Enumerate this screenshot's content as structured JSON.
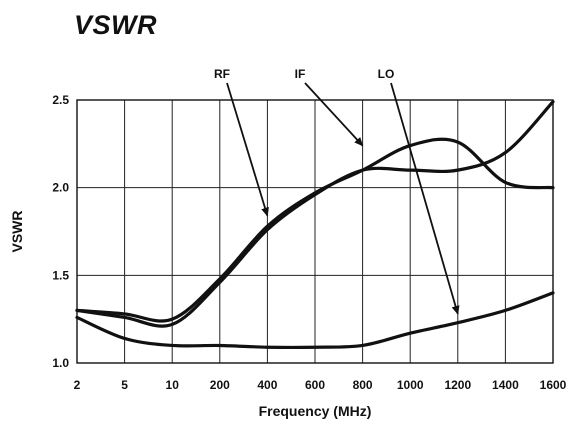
{
  "chart_data": {
    "type": "line",
    "title": "VSWR",
    "xlabel": "Frequency (MHz)",
    "ylabel": "VSWR",
    "x_tick_labels": [
      "2",
      "5",
      "10",
      "200",
      "400",
      "600",
      "800",
      "1000",
      "1200",
      "1400",
      "1600"
    ],
    "y_ticks": [
      1.0,
      1.5,
      2.0,
      2.5
    ],
    "y_tick_labels": [
      "1.0",
      "1.5",
      "2.0",
      "2.5"
    ],
    "ylim": [
      1.0,
      2.5
    ],
    "grid": true,
    "line_color": "#111111",
    "series": [
      {
        "name": "RF",
        "points": [
          [
            "2",
            1.3
          ],
          [
            "5",
            1.28
          ],
          [
            "10",
            1.25
          ],
          [
            "200",
            1.48
          ],
          [
            "400",
            1.78
          ],
          [
            "600",
            1.97
          ],
          [
            "800",
            2.1
          ],
          [
            "1000",
            2.24
          ],
          [
            "1200",
            2.26
          ],
          [
            "1400",
            2.03
          ],
          [
            "1600",
            2.0
          ]
        ]
      },
      {
        "name": "IF",
        "points": [
          [
            "2",
            1.3
          ],
          [
            "5",
            1.26
          ],
          [
            "10",
            1.22
          ],
          [
            "200",
            1.46
          ],
          [
            "400",
            1.76
          ],
          [
            "600",
            1.96
          ],
          [
            "800",
            2.1
          ],
          [
            "1000",
            2.1
          ],
          [
            "1200",
            2.1
          ],
          [
            "1400",
            2.2
          ],
          [
            "1600",
            2.49
          ]
        ]
      },
      {
        "name": "LO",
        "points": [
          [
            "2",
            1.26
          ],
          [
            "5",
            1.14
          ],
          [
            "10",
            1.1
          ],
          [
            "200",
            1.1
          ],
          [
            "400",
            1.09
          ],
          [
            "600",
            1.09
          ],
          [
            "800",
            1.1
          ],
          [
            "1000",
            1.17
          ],
          [
            "1200",
            1.23
          ],
          [
            "1400",
            1.3
          ],
          [
            "1600",
            1.4
          ]
        ]
      }
    ],
    "annotations": [
      {
        "label": "RF",
        "points_to_series": "RF",
        "target": [
          "400",
          1.84
        ]
      },
      {
        "label": "IF",
        "points_to_series": "IF",
        "target": [
          "800",
          2.24
        ]
      },
      {
        "label": "LO",
        "points_to_series": "LO",
        "target": [
          "1200",
          1.28
        ]
      }
    ]
  }
}
